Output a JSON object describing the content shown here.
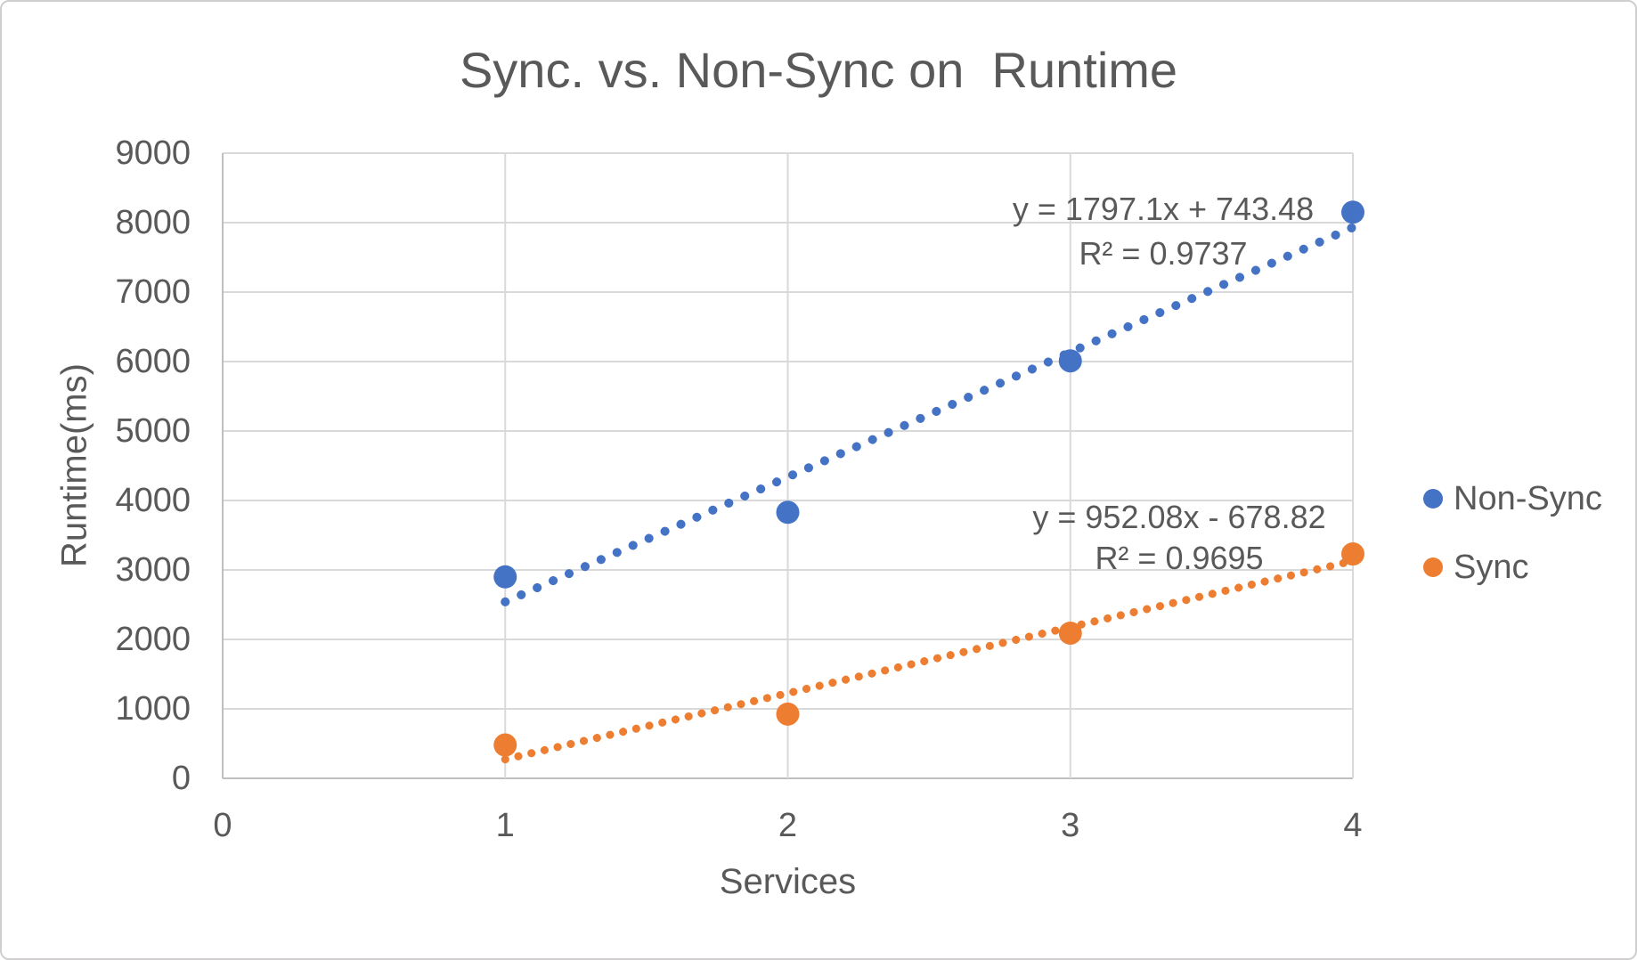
{
  "chart_data": {
    "type": "scatter",
    "title": "Sync. vs. Non-Sync on  Runtime",
    "xlabel": "Services",
    "ylabel": "Runtime(ms)",
    "xlim": [
      0,
      4
    ],
    "ylim": [
      0,
      9000
    ],
    "x_ticks": [
      0,
      1,
      2,
      3,
      4
    ],
    "y_ticks": [
      0,
      1000,
      2000,
      3000,
      4000,
      5000,
      6000,
      7000,
      8000,
      9000
    ],
    "grid": true,
    "legend_position": "right",
    "colors": {
      "grid": "#D9D9D9",
      "axis": "#BFBFBF",
      "text": "#595959",
      "background": "#FFFFFF"
    },
    "series": [
      {
        "name": "Non-Sync",
        "color": "#4472C4",
        "x": [
          1,
          2,
          3,
          4
        ],
        "y": [
          2900,
          3830,
          6010,
          8150
        ],
        "trendline": {
          "style": "dotted",
          "slope": 1797.1,
          "intercept": 743.48,
          "equation": "y = 1797.1x + 743.48",
          "r2": 0.9737,
          "r2_label": "R² = 0.9737"
        }
      },
      {
        "name": "Sync",
        "color": "#ED7D31",
        "x": [
          1,
          2,
          3,
          4
        ],
        "y": [
          480,
          925,
          2090,
          3230
        ],
        "trendline": {
          "style": "dotted",
          "slope": 952.08,
          "intercept": -678.82,
          "equation": "y = 952.08x - 678.82",
          "r2": 0.9695,
          "r2_label": "R² = 0.9695"
        }
      }
    ]
  }
}
